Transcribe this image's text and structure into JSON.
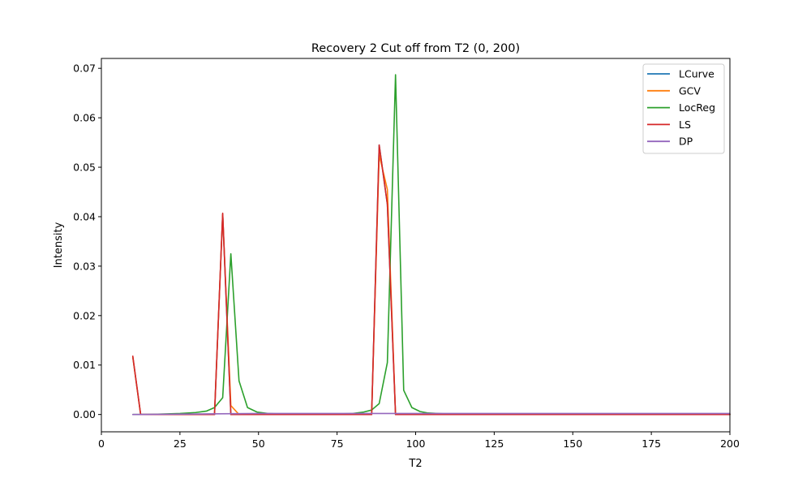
{
  "chart_data": {
    "type": "line",
    "title": "Recovery 2 Cut off from T2 (0, 200)",
    "xlabel": "T2",
    "ylabel": "Intensity",
    "xlim": [
      0,
      200
    ],
    "ylim": [
      -0.0035,
      0.072
    ],
    "xticks": [
      0,
      25,
      50,
      75,
      100,
      125,
      150,
      175,
      200
    ],
    "xtick_labels": [
      "0",
      "25",
      "50",
      "75",
      "100",
      "125",
      "150",
      "175",
      "200"
    ],
    "yticks": [
      0.0,
      0.01,
      0.02,
      0.03,
      0.04,
      0.05,
      0.06,
      0.07
    ],
    "ytick_labels": [
      "0.00",
      "0.01",
      "0.02",
      "0.03",
      "0.04",
      "0.05",
      "0.06",
      "0.07"
    ],
    "grid": false,
    "legend_position": "top-right",
    "series": [
      {
        "name": "LCurve",
        "color": "#1f77b4",
        "x": [
          10,
          12.5,
          36,
          38.6,
          41.2,
          86,
          88.4,
          91,
          93.6,
          200
        ],
        "y": [
          0.0116,
          0.0,
          0.0,
          0.0405,
          0.0,
          0.0,
          0.0545,
          0.0425,
          0.0,
          0.0
        ]
      },
      {
        "name": "GCV",
        "color": "#ff7f0e",
        "x": [
          10,
          12.5,
          36,
          38.6,
          41.2,
          43.8,
          86,
          88.4,
          91,
          93.6,
          200
        ],
        "y": [
          0.0116,
          0.0,
          0.0,
          0.0405,
          0.0018,
          0.0,
          0.0,
          0.0525,
          0.0455,
          0.0,
          0.0
        ]
      },
      {
        "name": "LocReg",
        "color": "#2ca02c",
        "x": [
          10,
          15,
          20,
          25,
          30,
          33.5,
          36,
          38.6,
          41.2,
          43.8,
          46.5,
          49.5,
          53,
          57,
          65,
          75,
          80,
          83.5,
          86,
          88.4,
          91,
          93.6,
          96.2,
          98.8,
          101.4,
          104,
          107,
          110,
          130,
          150,
          200
        ],
        "y": [
          0.0,
          0.0,
          0.0001,
          0.0002,
          0.0004,
          0.0007,
          0.0014,
          0.0034,
          0.0325,
          0.0068,
          0.0014,
          0.0005,
          0.0002,
          0.0001,
          0.0001,
          0.0001,
          0.0002,
          0.0005,
          0.0009,
          0.0022,
          0.0105,
          0.0687,
          0.0049,
          0.0014,
          0.0006,
          0.0003,
          0.0002,
          0.0001,
          0.0,
          0.0,
          0.0
        ]
      },
      {
        "name": "LS",
        "color": "#d62728",
        "x": [
          10,
          12.5,
          36,
          38.6,
          41.2,
          86,
          88.4,
          91,
          93.6,
          200
        ],
        "y": [
          0.0118,
          0.0,
          0.0,
          0.0407,
          0.0,
          0.0,
          0.0545,
          0.0425,
          0.0,
          0.0
        ]
      },
      {
        "name": "DP",
        "color": "#9467bd",
        "x": [
          10,
          30,
          50,
          70,
          90,
          110,
          150,
          200
        ],
        "y": [
          0.0,
          0.0001,
          0.0002,
          0.0002,
          0.0002,
          0.0002,
          0.0002,
          0.0002
        ]
      }
    ]
  }
}
